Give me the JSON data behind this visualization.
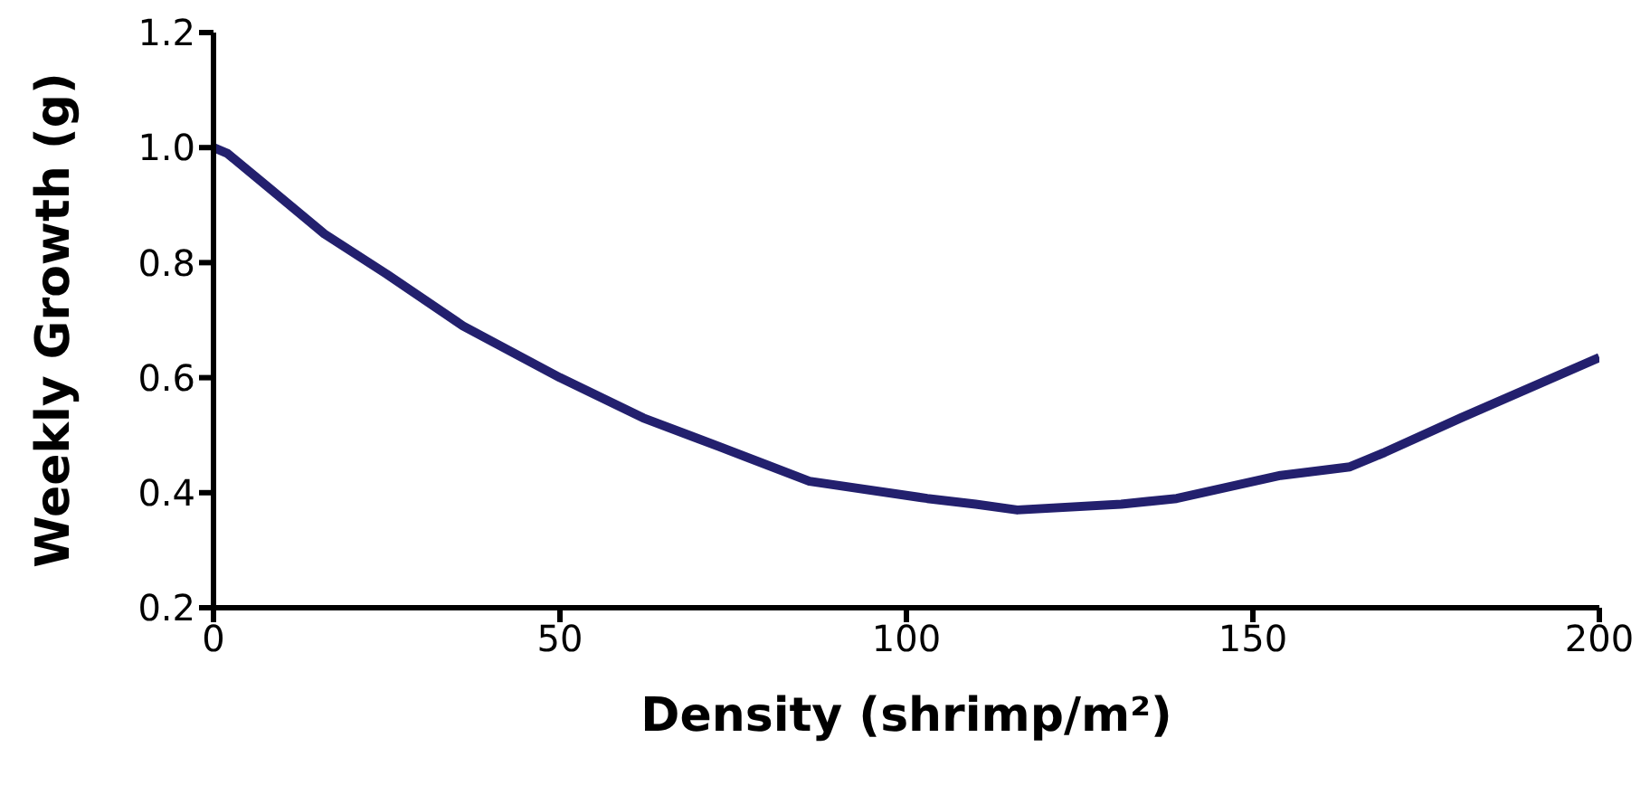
{
  "chart_data": {
    "type": "line",
    "xlabel": "Density (shrimp/m²)",
    "ylabel": "Weekly Growth (g)",
    "x": [
      0,
      2,
      8,
      16,
      25,
      36,
      50,
      62,
      73,
      86,
      103,
      110,
      116,
      131,
      139,
      154,
      164,
      169,
      180,
      200
    ],
    "series": [
      {
        "color": "#23206e",
        "values": [
          1.0,
          0.99,
          0.93,
          0.85,
          0.78,
          0.69,
          0.6,
          0.53,
          0.48,
          0.42,
          0.39,
          0.38,
          0.37,
          0.38,
          0.39,
          0.43,
          0.445,
          0.47,
          0.53,
          0.635
        ]
      }
    ],
    "xlim": [
      0,
      200
    ],
    "xticks": [
      0,
      50,
      100,
      150,
      200
    ],
    "ylim": [
      0.2,
      1.2
    ],
    "yticks": [
      0.2,
      0.4,
      0.6,
      0.8,
      {
        "value": 1,
        "label": "1.0"
      },
      1.2
    ],
    "grid": false,
    "legend": false,
    "marker": "none",
    "line_style": "solid"
  }
}
